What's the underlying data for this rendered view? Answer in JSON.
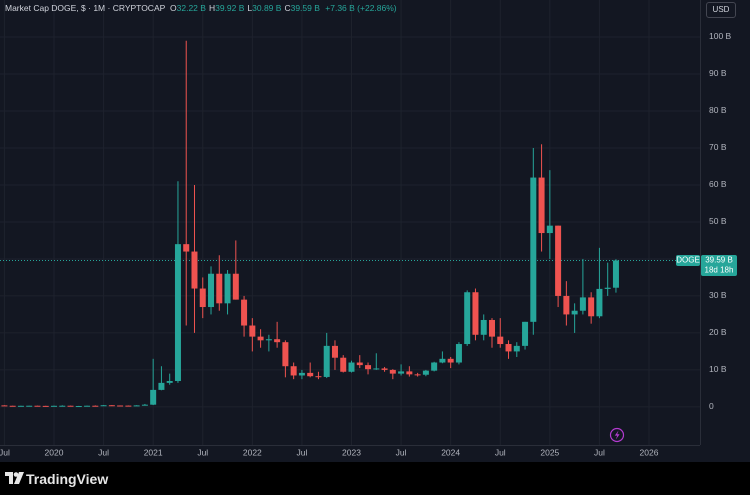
{
  "chart_data": {
    "type": "candlestick",
    "title": "Market Cap DOGE, $ · 1M · CRYPTOCAP",
    "ohlc_legend": [
      {
        "label": "O",
        "value": "32.22 B"
      },
      {
        "label": "H",
        "value": "39.92 B"
      },
      {
        "label": "L",
        "value": "30.89 B"
      },
      {
        "label": "C",
        "value": "39.59 B"
      }
    ],
    "change": "+7.36 B (+22.86%)",
    "currency": "USD",
    "branding": "TradingView",
    "up_color": "#26a69a",
    "down_color": "#ef5350",
    "grid": true,
    "x": [
      "2019-07",
      "2019-08",
      "2019-09",
      "2019-10",
      "2019-11",
      "2019-12",
      "2020-01",
      "2020-02",
      "2020-03",
      "2020-04",
      "2020-05",
      "2020-06",
      "2020-07",
      "2020-08",
      "2020-09",
      "2020-10",
      "2020-11",
      "2020-12",
      "2021-01",
      "2021-02",
      "2021-03",
      "2021-04",
      "2021-05",
      "2021-06",
      "2021-07",
      "2021-08",
      "2021-09",
      "2021-10",
      "2021-11",
      "2021-12",
      "2022-01",
      "2022-02",
      "2022-03",
      "2022-04",
      "2022-05",
      "2022-06",
      "2022-07",
      "2022-08",
      "2022-09",
      "2022-10",
      "2022-11",
      "2022-12",
      "2023-01",
      "2023-02",
      "2023-03",
      "2023-04",
      "2023-05",
      "2023-06",
      "2023-07",
      "2023-08",
      "2023-09",
      "2023-10",
      "2023-11",
      "2023-12",
      "2024-01",
      "2024-02",
      "2024-03",
      "2024-04",
      "2024-05",
      "2024-06",
      "2024-07",
      "2024-08",
      "2024-09",
      "2024-10",
      "2024-11",
      "2024-12",
      "2025-01",
      "2025-02",
      "2025-03",
      "2025-04",
      "2025-05",
      "2025-06",
      "2025-07",
      "2025-08",
      "2025-09"
    ],
    "open": [
      0.41,
      0.31,
      0.29,
      0.3,
      0.32,
      0.28,
      0.25,
      0.3,
      0.32,
      0.21,
      0.24,
      0.32,
      0.3,
      0.45,
      0.38,
      0.35,
      0.33,
      0.41,
      0.6,
      4.6,
      6.5,
      7,
      44,
      42,
      32,
      27,
      36,
      28,
      36,
      29,
      22,
      19,
      18,
      18.3,
      17.5,
      11,
      8.5,
      9.2,
      8.3,
      8.1,
      16.5,
      13.3,
      9.5,
      12,
      11.3,
      10.2,
      10.4,
      10,
      9,
      9.6,
      8.8,
      8.7,
      9.8,
      12,
      13,
      12,
      17,
      31,
      19.5,
      23.5,
      19,
      17,
      15,
      16.5,
      23,
      62,
      47,
      49,
      30,
      25,
      26,
      29.6,
      24.5,
      31.9,
      32.22
    ],
    "high": [
      0.45,
      0.34,
      0.32,
      0.34,
      0.33,
      0.3,
      0.34,
      0.46,
      0.33,
      0.28,
      0.33,
      0.42,
      0.5,
      0.48,
      0.4,
      0.4,
      0.46,
      0.8,
      13,
      11,
      9,
      61,
      99,
      60,
      35,
      38,
      41,
      37,
      45,
      30,
      24,
      21,
      19.5,
      23,
      18,
      12,
      10,
      12,
      9.5,
      20,
      18,
      14,
      12.5,
      14,
      12,
      14.5,
      10.8,
      10.2,
      11.5,
      11,
      9.2,
      10,
      12.2,
      15,
      13.5,
      17.5,
      31.5,
      32,
      25,
      24,
      24,
      18,
      17.5,
      23,
      70,
      71,
      64,
      49,
      34,
      28,
      40,
      31,
      43,
      39,
      39.92
    ],
    "low": [
      0.3,
      0.27,
      0.26,
      0.28,
      0.25,
      0.24,
      0.24,
      0.3,
      0.17,
      0.2,
      0.23,
      0.28,
      0.28,
      0.35,
      0.32,
      0.3,
      0.32,
      0.36,
      0.5,
      4.5,
      6,
      6.5,
      22,
      20,
      24,
      25,
      26,
      25,
      29,
      19,
      15,
      16,
      15,
      16,
      8,
      7.5,
      7.5,
      8,
      7.5,
      7.8,
      10,
      9.3,
      9.3,
      10.5,
      8.8,
      10,
      9.5,
      7.5,
      8.5,
      8.2,
      8.2,
      8.3,
      9.6,
      11.8,
      10.5,
      11.5,
      16.5,
      18,
      18,
      16,
      16,
      13,
      13.5,
      15.5,
      19.5,
      42,
      40,
      27,
      22,
      20,
      25,
      22.5,
      24,
      30,
      30.89
    ],
    "close": [
      0.31,
      0.29,
      0.3,
      0.32,
      0.28,
      0.25,
      0.3,
      0.32,
      0.21,
      0.24,
      0.32,
      0.3,
      0.45,
      0.38,
      0.35,
      0.33,
      0.41,
      0.6,
      4.6,
      6.5,
      7,
      44,
      42,
      32,
      27,
      36,
      28,
      36,
      29,
      22,
      19,
      18,
      18.3,
      17.5,
      11,
      8.5,
      9.2,
      8.3,
      8.1,
      16.5,
      13.3,
      9.5,
      12,
      11.3,
      10.2,
      10.4,
      10,
      9,
      9.6,
      8.8,
      8.7,
      9.8,
      12,
      13,
      12,
      17,
      31,
      19.5,
      23.5,
      19,
      17,
      15,
      16.5,
      23,
      62,
      47,
      49,
      30,
      25,
      26,
      29.6,
      24.5,
      31.9,
      32.22,
      39.59
    ],
    "ylim": [
      -13,
      110
    ],
    "yticks": [
      0,
      {
        "value": 10,
        "label": "10 B"
      },
      {
        "value": 20,
        "label": "20 B"
      },
      {
        "value": 30,
        "label": "30 B"
      },
      {
        "value": 40,
        "label": "40 B"
      },
      {
        "value": 50,
        "label": "50 B"
      },
      {
        "value": 60,
        "label": "60 B"
      },
      {
        "value": 70,
        "label": "70 B"
      },
      {
        "value": 80,
        "label": "80 B"
      },
      {
        "value": 90,
        "label": "90 B"
      },
      {
        "value": 100,
        "label": "100 B"
      }
    ],
    "xticks": [
      {
        "value": "2019-07",
        "label": "Jul"
      },
      {
        "value": "2020-01",
        "label": "2020"
      },
      {
        "value": "2020-07",
        "label": "Jul"
      },
      {
        "value": "2021-01",
        "label": "2021"
      },
      {
        "value": "2021-07",
        "label": "Jul"
      },
      {
        "value": "2022-01",
        "label": "2022"
      },
      {
        "value": "2022-07",
        "label": "Jul"
      },
      {
        "value": "2023-01",
        "label": "2023"
      },
      {
        "value": "2023-07",
        "label": "Jul"
      },
      {
        "value": "2024-01",
        "label": "2024"
      },
      {
        "value": "2024-07",
        "label": "Jul"
      },
      {
        "value": "2025-01",
        "label": "2025"
      },
      {
        "value": "2025-07",
        "label": "Jul"
      },
      {
        "value": "2026-01",
        "label": "2026"
      }
    ],
    "last_price": {
      "symbol": "DOGE",
      "value": 39.59,
      "value_label": "39.59 B",
      "countdown": "18d 18h"
    }
  }
}
